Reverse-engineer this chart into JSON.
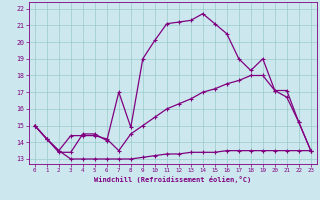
{
  "xlabel": "Windchill (Refroidissement éolien,°C)",
  "bg_color": "#cce8ee",
  "line_color": "#800080",
  "grid_color": "#99cccc",
  "xlim": [
    -0.5,
    23.5
  ],
  "ylim": [
    12.7,
    22.4
  ],
  "yticks": [
    13,
    14,
    15,
    16,
    17,
    18,
    19,
    20,
    21,
    22
  ],
  "xticks": [
    0,
    1,
    2,
    3,
    4,
    5,
    6,
    7,
    8,
    9,
    10,
    11,
    12,
    13,
    14,
    15,
    16,
    17,
    18,
    19,
    20,
    21,
    22,
    23
  ],
  "line1_x": [
    0,
    1,
    2,
    3,
    4,
    5,
    6,
    7,
    8,
    9,
    10,
    11,
    12,
    13,
    14,
    15,
    16,
    17,
    18,
    19,
    20,
    21,
    22,
    23
  ],
  "line1_y": [
    15.0,
    14.2,
    13.4,
    13.4,
    14.5,
    14.5,
    14.1,
    17.0,
    14.9,
    19.0,
    20.1,
    21.1,
    21.2,
    21.3,
    21.7,
    21.1,
    20.5,
    19.0,
    18.3,
    19.0,
    17.1,
    16.7,
    15.2,
    13.5
  ],
  "line2_x": [
    0,
    1,
    2,
    3,
    4,
    5,
    6,
    7,
    8,
    9,
    10,
    11,
    12,
    13,
    14,
    15,
    16,
    17,
    18,
    19,
    20,
    21,
    22,
    23
  ],
  "line2_y": [
    15.0,
    14.2,
    13.5,
    14.4,
    14.4,
    14.4,
    14.2,
    13.5,
    14.5,
    15.0,
    15.5,
    16.0,
    16.3,
    16.6,
    17.0,
    17.2,
    17.5,
    17.7,
    18.0,
    18.0,
    17.1,
    17.1,
    15.2,
    13.5
  ],
  "line3_x": [
    0,
    1,
    2,
    3,
    4,
    5,
    6,
    7,
    8,
    9,
    10,
    11,
    12,
    13,
    14,
    15,
    16,
    17,
    18,
    19,
    20,
    21,
    22,
    23
  ],
  "line3_y": [
    15.0,
    14.2,
    13.5,
    13.0,
    13.0,
    13.0,
    13.0,
    13.0,
    13.0,
    13.1,
    13.2,
    13.3,
    13.3,
    13.4,
    13.4,
    13.4,
    13.5,
    13.5,
    13.5,
    13.5,
    13.5,
    13.5,
    13.5,
    13.5
  ]
}
